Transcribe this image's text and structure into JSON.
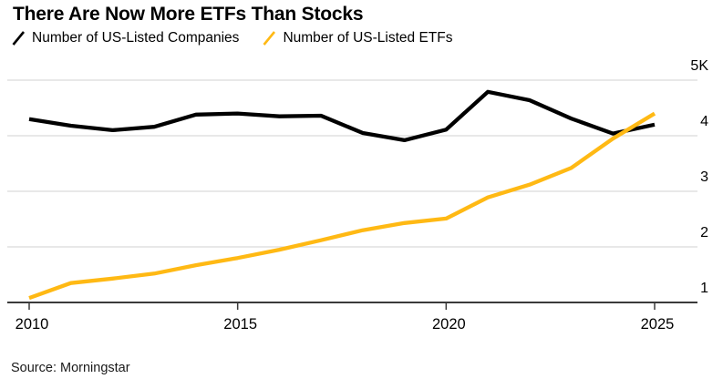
{
  "title": "There Are Now More ETFs Than Stocks",
  "source": "Source: Morningstar",
  "colors": {
    "companies": "#000000",
    "etfs": "#FFB914",
    "gridline": "#d9d9d9",
    "axis": "#3a3a3a",
    "text": "#000000"
  },
  "legend": {
    "items": [
      {
        "label": "Number of US-Listed Companies",
        "color": "#000000"
      },
      {
        "label": "Number of US-Listed ETFs",
        "color": "#FFB914"
      }
    ]
  },
  "chart_data": {
    "type": "line",
    "title": "There Are Now More ETFs Than Stocks",
    "xlabel": "",
    "ylabel": "",
    "x": [
      2010,
      2011,
      2012,
      2013,
      2014,
      2015,
      2016,
      2017,
      2018,
      2019,
      2020,
      2021,
      2022,
      2023,
      2024,
      2025
    ],
    "series": [
      {
        "name": "Number of US-Listed Companies",
        "color": "#000000",
        "values": [
          4300,
          4180,
          4100,
          4160,
          4380,
          4400,
          4350,
          4360,
          4050,
          3920,
          4110,
          4790,
          4640,
          4310,
          4040,
          4200
        ]
      },
      {
        "name": "Number of US-Listed ETFs",
        "color": "#FFB914",
        "values": [
          1080,
          1350,
          1430,
          1520,
          1670,
          1800,
          1950,
          2120,
          2300,
          2430,
          2510,
          2890,
          3120,
          3420,
          3950,
          4400
        ]
      }
    ],
    "ylim": [
      1000,
      5000
    ],
    "yticks": [
      {
        "value": 5000,
        "label": "5K"
      },
      {
        "value": 4000,
        "label": "4"
      },
      {
        "value": 3000,
        "label": "3"
      },
      {
        "value": 2000,
        "label": "2"
      },
      {
        "value": 1000,
        "label": "1"
      }
    ],
    "xticks": [
      2010,
      2015,
      2020,
      2025
    ],
    "grid": "horizontal",
    "legend_position": "top-left",
    "baseline_value": 1000
  }
}
